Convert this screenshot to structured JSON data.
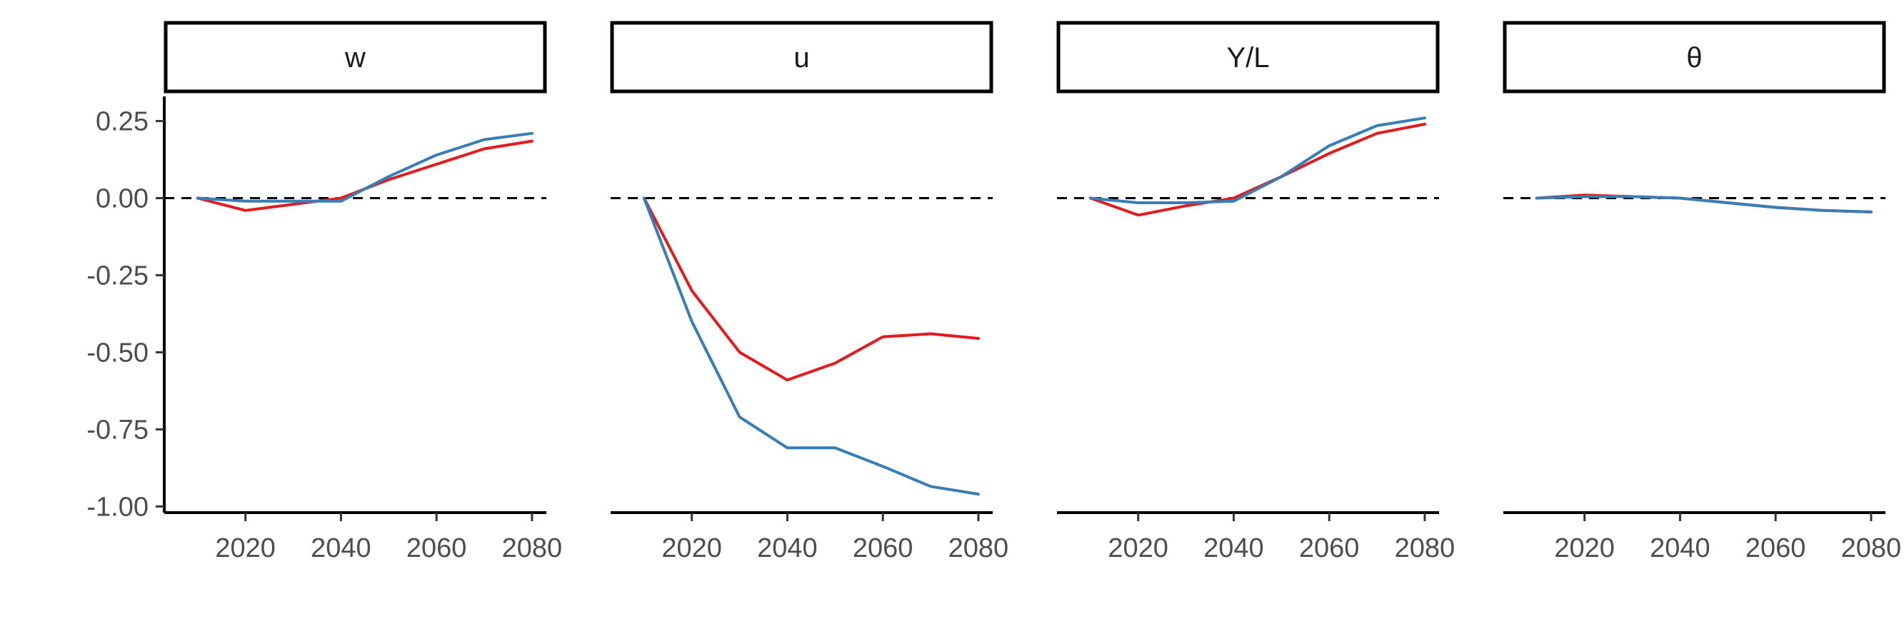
{
  "chart_data": {
    "type": "line",
    "facets": [
      "w",
      "u",
      "Y/L",
      "θ"
    ],
    "x": [
      2010,
      2020,
      2030,
      2040,
      2050,
      2060,
      2070,
      2080
    ],
    "xlim": [
      2003,
      2083
    ],
    "ylim": [
      -1.02,
      0.33
    ],
    "x_ticks": [
      2020,
      2040,
      2060,
      2080
    ],
    "y_ticks": [
      0.25,
      0.0,
      -0.25,
      -0.5,
      -0.75,
      -1.0
    ],
    "y_tick_labels": [
      "0.25",
      "0.00",
      "-0.25",
      "-0.50",
      "-0.75",
      "-1.00"
    ],
    "reference_line": {
      "y": 0,
      "style": "dashed"
    },
    "series_colors": [
      "#e41a1c",
      "#377eb8"
    ],
    "panels": [
      {
        "label": "w",
        "series": [
          {
            "color": "#e41a1c",
            "values": [
              0.0,
              -0.04,
              -0.02,
              0.0,
              0.06,
              0.11,
              0.16,
              0.185
            ]
          },
          {
            "color": "#377eb8",
            "values": [
              0.0,
              -0.01,
              -0.01,
              -0.01,
              0.07,
              0.14,
              0.19,
              0.21
            ]
          }
        ]
      },
      {
        "label": "u",
        "series": [
          {
            "color": "#e41a1c",
            "values": [
              0.0,
              -0.3,
              -0.5,
              -0.59,
              -0.535,
              -0.45,
              -0.44,
              -0.455
            ]
          },
          {
            "color": "#377eb8",
            "values": [
              0.0,
              -0.4,
              -0.71,
              -0.81,
              -0.81,
              -0.87,
              -0.935,
              -0.96
            ]
          }
        ]
      },
      {
        "label": "Y/L",
        "series": [
          {
            "color": "#e41a1c",
            "values": [
              0.0,
              -0.055,
              -0.025,
              0.0,
              0.07,
              0.145,
              0.21,
              0.24
            ]
          },
          {
            "color": "#377eb8",
            "values": [
              0.0,
              -0.015,
              -0.015,
              -0.01,
              0.07,
              0.17,
              0.235,
              0.26
            ]
          }
        ]
      },
      {
        "label": "θ",
        "series": [
          {
            "color": "#e41a1c",
            "values": [
              0.0,
              0.01,
              0.005,
              0.0,
              -0.015,
              -0.03,
              -0.04,
              -0.045
            ]
          },
          {
            "color": "#377eb8",
            "values": [
              0.0,
              0.005,
              0.005,
              0.0,
              -0.015,
              -0.03,
              -0.04,
              -0.045
            ]
          }
        ]
      }
    ]
  }
}
